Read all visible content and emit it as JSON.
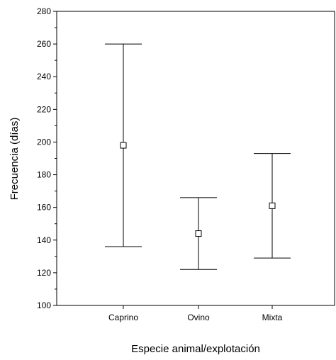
{
  "chart_data": {
    "type": "errorbar",
    "categories": [
      "Caprino",
      "Ovino",
      "Mixta"
    ],
    "series": [
      {
        "mean": [
          198,
          144,
          161
        ],
        "lower": [
          136,
          122,
          129
        ],
        "upper": [
          260,
          166,
          193
        ]
      }
    ],
    "xlabel": "Especie animal/explotación",
    "ylabel": "Frecuencia (días)",
    "ylim": [
      100,
      280
    ],
    "yticks": [
      100,
      120,
      140,
      160,
      180,
      200,
      220,
      240,
      260,
      280
    ],
    "ytick_labels": [
      "100",
      "120",
      "140",
      "160",
      "180",
      "200",
      "220",
      "240",
      "260",
      "280"
    ],
    "marker": "open-square",
    "grid": false,
    "colors": {
      "line": "#000000",
      "background": "#ffffff"
    }
  }
}
